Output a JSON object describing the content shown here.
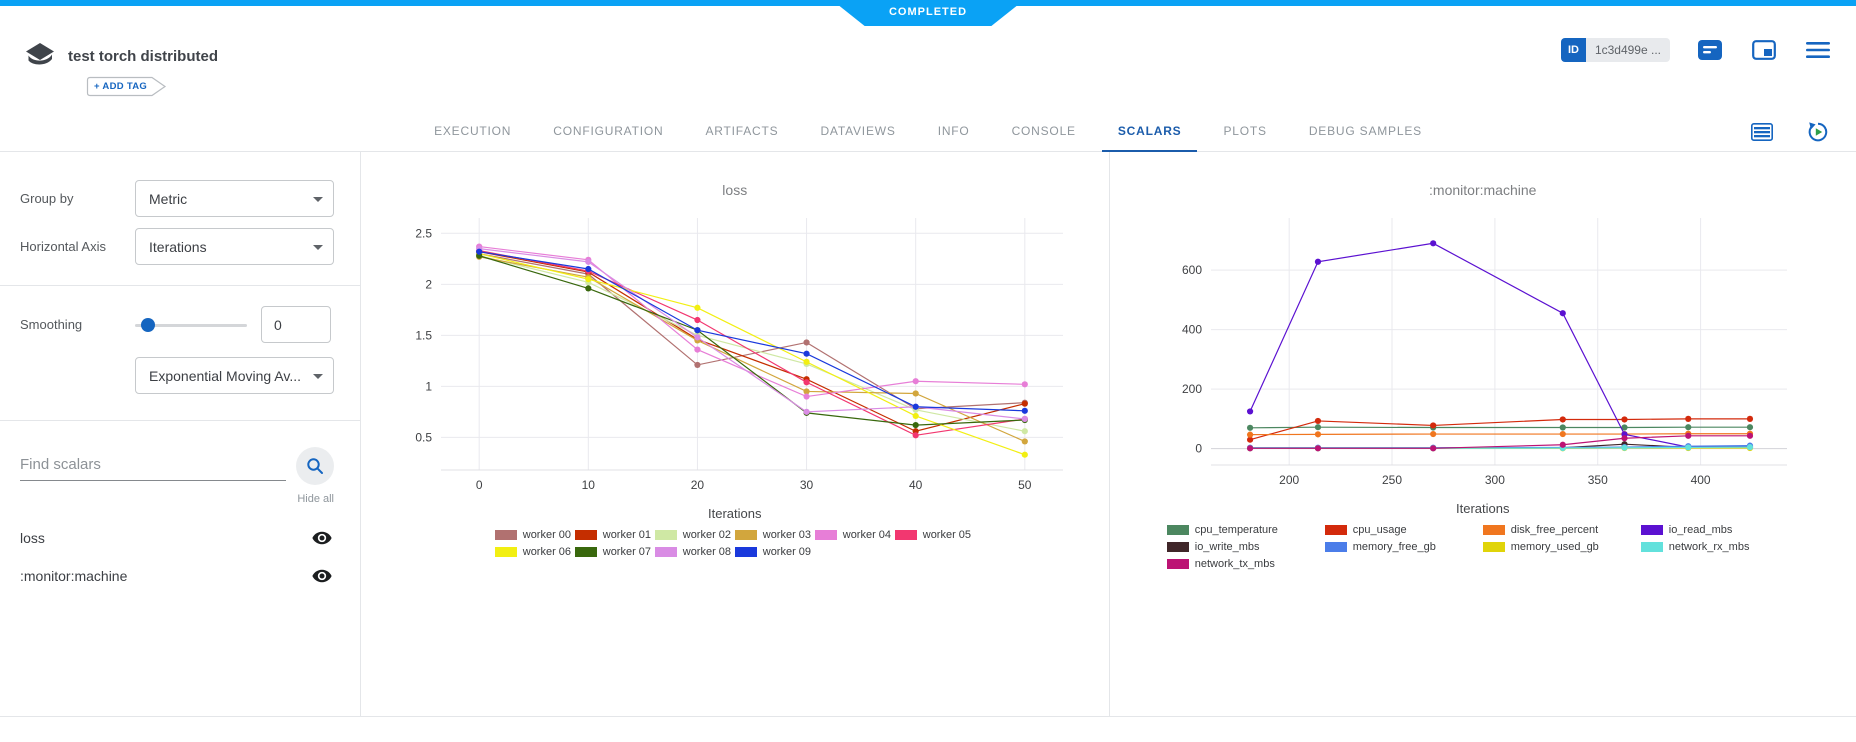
{
  "status": {
    "label": "COMPLETED",
    "color": "#0aa2f5"
  },
  "header": {
    "title": "test torch distributed",
    "add_tag_label": "+ ADD TAG",
    "id_label": "ID",
    "id_value": "1c3d499e ...",
    "icons": [
      "experiment-icon",
      "comment-icon",
      "info-panel-icon",
      "menu-icon"
    ],
    "accent_color": "#1565c0"
  },
  "tabs": {
    "items": [
      {
        "label": "EXECUTION",
        "active": false
      },
      {
        "label": "CONFIGURATION",
        "active": false
      },
      {
        "label": "ARTIFACTS",
        "active": false
      },
      {
        "label": "DATAVIEWS",
        "active": false
      },
      {
        "label": "INFO",
        "active": false
      },
      {
        "label": "CONSOLE",
        "active": false
      },
      {
        "label": "SCALARS",
        "active": true
      },
      {
        "label": "PLOTS",
        "active": false
      },
      {
        "label": "DEBUG SAMPLES",
        "active": false
      }
    ],
    "right_icons": [
      "table-view-icon",
      "auto-refresh-icon"
    ]
  },
  "sidebar": {
    "group_by": {
      "label": "Group by",
      "value": "Metric"
    },
    "horizontal_axis": {
      "label": "Horizontal Axis",
      "value": "Iterations"
    },
    "smoothing": {
      "label": "Smoothing",
      "value": "0",
      "type_value": "Exponential Moving Av..."
    },
    "find_placeholder": "Find scalars",
    "hide_all_label": "Hide all",
    "metrics": [
      {
        "label": "loss",
        "visible": true
      },
      {
        "label": ":monitor:machine",
        "visible": true
      }
    ]
  },
  "chart_data": [
    {
      "type": "line",
      "title": "loss",
      "xlabel": "Iterations",
      "x": [
        0,
        10,
        20,
        30,
        40,
        50
      ],
      "xlim": [
        -3.5,
        53.5
      ],
      "ylim": [
        0.18,
        2.65
      ],
      "xticks": [
        0,
        10,
        20,
        30,
        40,
        50
      ],
      "yticks": [
        0.5,
        1,
        1.5,
        2,
        2.5
      ],
      "grid": true,
      "zeroline": false,
      "legend_position": "bottom",
      "legend_cols": 6,
      "series": [
        {
          "name": "worker 00",
          "color": "#b17170",
          "values": [
            2.3,
            2.1,
            1.21,
            1.43,
            0.78,
            0.84
          ]
        },
        {
          "name": "worker 01",
          "color": "#c52e00",
          "values": [
            2.32,
            2.12,
            1.46,
            1.07,
            0.56,
            0.83
          ]
        },
        {
          "name": "worker 02",
          "color": "#cfe8a4",
          "values": [
            2.28,
            2.02,
            1.5,
            1.22,
            0.77,
            0.56
          ]
        },
        {
          "name": "worker 03",
          "color": "#d2a63d",
          "values": [
            2.27,
            2.07,
            1.45,
            0.95,
            0.93,
            0.46
          ]
        },
        {
          "name": "worker 04",
          "color": "#e77ed7",
          "values": [
            2.37,
            2.24,
            1.36,
            0.9,
            1.05,
            1.02
          ]
        },
        {
          "name": "worker 05",
          "color": "#f23770",
          "values": [
            2.33,
            2.13,
            1.65,
            1.04,
            0.52,
            0.68
          ]
        },
        {
          "name": "worker 06",
          "color": "#f2ef12",
          "values": [
            2.3,
            2.05,
            1.77,
            1.24,
            0.71,
            0.33
          ]
        },
        {
          "name": "worker 07",
          "color": "#39680d",
          "values": [
            2.28,
            1.96,
            1.55,
            0.74,
            0.62,
            0.67
          ]
        },
        {
          "name": "worker 08",
          "color": "#d98ce4",
          "values": [
            2.35,
            2.22,
            1.48,
            0.75,
            0.8,
            0.68
          ]
        },
        {
          "name": "worker 09",
          "color": "#1a39dc",
          "values": [
            2.32,
            2.15,
            1.55,
            1.32,
            0.8,
            0.76
          ]
        }
      ]
    },
    {
      "type": "line",
      "title": ":monitor:machine",
      "xlabel": "Iterations",
      "x": [
        181,
        214,
        270,
        333,
        363,
        394,
        424
      ],
      "xlim": [
        162,
        442
      ],
      "ylim": [
        -55,
        775
      ],
      "xticks": [
        200,
        250,
        300,
        350,
        400
      ],
      "yticks": [
        0,
        200,
        400,
        600
      ],
      "grid": true,
      "zeroline": true,
      "legend_position": "bottom",
      "legend_cols": 4,
      "series": [
        {
          "name": "cpu_temperature",
          "color": "#4c8760",
          "values": [
            70,
            72,
            71,
            71,
            71,
            72,
            72
          ]
        },
        {
          "name": "cpu_usage",
          "color": "#d32a0c",
          "values": [
            30,
            93,
            78,
            98,
            98,
            100,
            100
          ]
        },
        {
          "name": "disk_free_percent",
          "color": "#f0761f",
          "values": [
            47,
            48,
            49,
            49,
            49,
            50,
            50
          ]
        },
        {
          "name": "io_read_mbs",
          "color": "#5b11d1",
          "values": [
            125,
            628,
            690,
            455,
            48,
            5,
            8
          ]
        },
        {
          "name": "io_write_mbs",
          "color": "#402629",
          "values": [
            2,
            2,
            2,
            3,
            15,
            4,
            4
          ]
        },
        {
          "name": "memory_free_gb",
          "color": "#4b7de9",
          "values": [
            3,
            3,
            3,
            4,
            5,
            8,
            10
          ]
        },
        {
          "name": "memory_used_gb",
          "color": "#e0d409",
          "values": [
            1,
            1,
            1,
            1,
            2,
            2,
            2
          ]
        },
        {
          "name": "network_rx_mbs",
          "color": "#62e1dc",
          "values": [
            1,
            1,
            1,
            2,
            3,
            4,
            5
          ]
        },
        {
          "name": "network_tx_mbs",
          "color": "#bc1374",
          "values": [
            1,
            1,
            1,
            13,
            35,
            43,
            43
          ]
        }
      ]
    }
  ]
}
